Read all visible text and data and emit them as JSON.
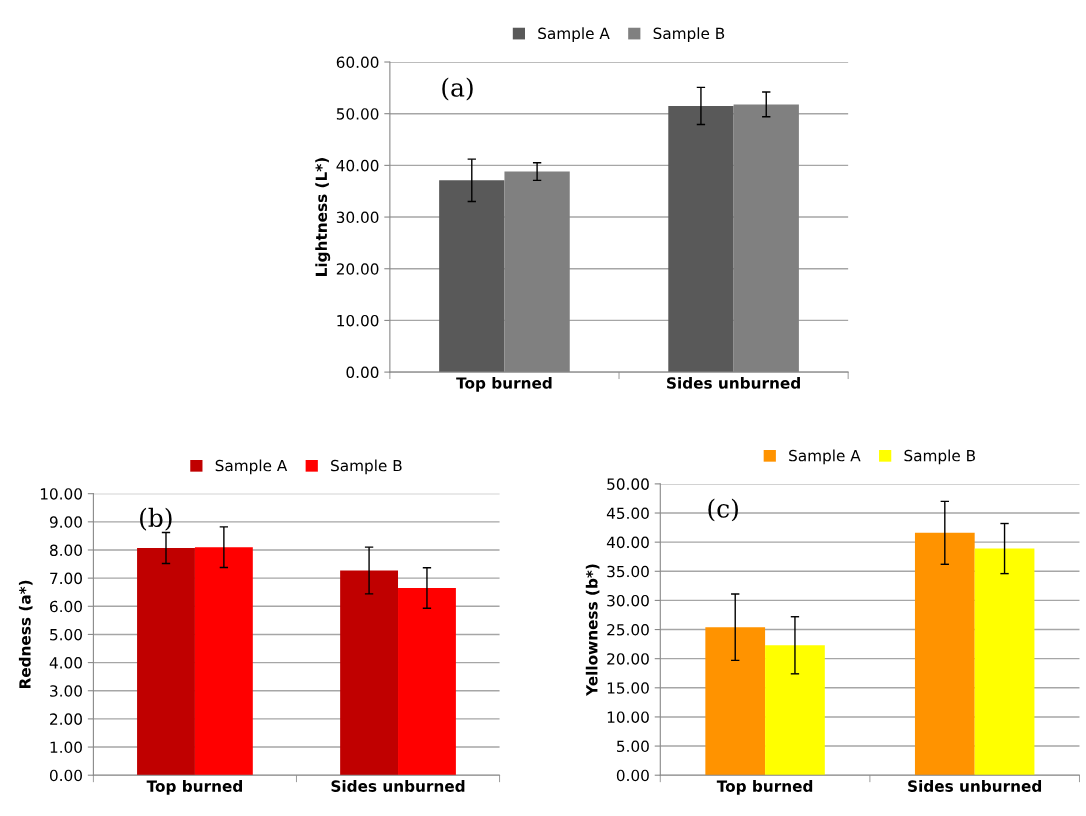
{
  "chart_data": [
    {
      "type": "bar",
      "categories": [
        "Top burned",
        "Sides unburned"
      ],
      "ylabel": "Lightness (L*)",
      "annotations": [
        "(a)"
      ],
      "series": [
        {
          "name": "Sample A",
          "color": "#595959",
          "values": [
            37.1,
            51.5
          ],
          "errors": [
            4.1,
            3.6
          ]
        },
        {
          "name": "Sample B",
          "color": "#808080",
          "values": [
            38.8,
            51.8
          ],
          "errors": [
            1.7,
            2.4
          ]
        }
      ],
      "ylim": [
        0,
        60
      ],
      "yticks": [
        {
          "value": 0,
          "label": "0.00"
        },
        {
          "value": 10,
          "label": "10.00"
        },
        {
          "value": 20,
          "label": "20.00"
        },
        {
          "value": 30,
          "label": "30.00"
        },
        {
          "value": 40,
          "label": "40.00"
        },
        {
          "value": 50,
          "label": "50.00"
        },
        {
          "value": 60,
          "label": "60.00"
        }
      ],
      "grid": "y",
      "legend": "top"
    },
    {
      "type": "bar",
      "categories": [
        "Top burned",
        "Sides unburned"
      ],
      "ylabel": "Redness (a*)",
      "annotations": [
        "(b)"
      ],
      "series": [
        {
          "name": "Sample A",
          "color": "#c00000",
          "values": [
            8.07,
            7.27
          ],
          "errors": [
            0.55,
            0.83
          ]
        },
        {
          "name": "Sample B",
          "color": "#ff0000",
          "values": [
            8.1,
            6.65
          ],
          "errors": [
            0.72,
            0.72
          ]
        }
      ],
      "ylim": [
        0,
        10
      ],
      "yticks": [
        {
          "value": 0,
          "label": "0.00"
        },
        {
          "value": 1,
          "label": "1.00"
        },
        {
          "value": 2,
          "label": "2.00"
        },
        {
          "value": 3,
          "label": "3.00"
        },
        {
          "value": 4,
          "label": "4.00"
        },
        {
          "value": 5,
          "label": "5.00"
        },
        {
          "value": 6,
          "label": "6.00"
        },
        {
          "value": 7,
          "label": "7.00"
        },
        {
          "value": 8,
          "label": "8.00"
        },
        {
          "value": 9,
          "label": "9.00"
        },
        {
          "value": 10,
          "label": "10.00"
        }
      ],
      "grid": "y",
      "legend": "top"
    },
    {
      "type": "bar",
      "categories": [
        "Top burned",
        "Sides unburned"
      ],
      "ylabel": "Yellowness (b*)",
      "annotations": [
        "(c)"
      ],
      "series": [
        {
          "name": "Sample A",
          "color": "#ff9300",
          "values": [
            25.4,
            41.6
          ],
          "errors": [
            5.7,
            5.4
          ]
        },
        {
          "name": "Sample B",
          "color": "#ffff00",
          "values": [
            22.3,
            38.9
          ],
          "errors": [
            4.9,
            4.3
          ]
        }
      ],
      "ylim": [
        0,
        50
      ],
      "yticks": [
        {
          "value": 0,
          "label": "0.00"
        },
        {
          "value": 5,
          "label": "5.00"
        },
        {
          "value": 10,
          "label": "10.00"
        },
        {
          "value": 15,
          "label": "15.00"
        },
        {
          "value": 20,
          "label": "20.00"
        },
        {
          "value": 25,
          "label": "25.00"
        },
        {
          "value": 30,
          "label": "30.00"
        },
        {
          "value": 35,
          "label": "35.00"
        },
        {
          "value": 40,
          "label": "40.00"
        },
        {
          "value": 45,
          "label": "45.00"
        },
        {
          "value": 50,
          "label": "50.00"
        }
      ],
      "grid": "y",
      "legend": "top"
    }
  ]
}
